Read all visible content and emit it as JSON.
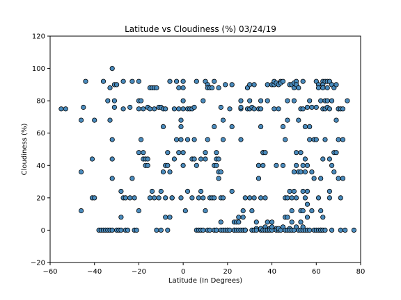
{
  "chart_data": {
    "type": "scatter",
    "title": "Latitude vs Cloudiness (%) 03/24/19",
    "xlabel": "Latitude (In Degrees)",
    "ylabel": "Cloudiness (%)",
    "xlim": [
      -60,
      80
    ],
    "ylim": [
      -20,
      120
    ],
    "xticks": [
      -60,
      -40,
      -20,
      0,
      20,
      40,
      60,
      80
    ],
    "yticks": [
      -20,
      0,
      20,
      40,
      60,
      80,
      100,
      120
    ],
    "grid": false,
    "marker_color": "#4a8bbd",
    "edge_color": "#000000",
    "points": [
      [
        -55,
        75
      ],
      [
        -53,
        75
      ],
      [
        -46,
        12
      ],
      [
        -46,
        36
      ],
      [
        -46,
        68
      ],
      [
        -45,
        76
      ],
      [
        -44,
        92
      ],
      [
        -41,
        20
      ],
      [
        -41,
        44
      ],
      [
        -40,
        68
      ],
      [
        -40,
        20
      ],
      [
        -38,
        0
      ],
      [
        -37,
        0
      ],
      [
        -36,
        0
      ],
      [
        -36,
        92
      ],
      [
        -35,
        0
      ],
      [
        -34,
        80
      ],
      [
        -34,
        0
      ],
      [
        -33,
        88
      ],
      [
        -33,
        68
      ],
      [
        -33,
        0
      ],
      [
        -32,
        100
      ],
      [
        -32,
        56
      ],
      [
        -32,
        44
      ],
      [
        -32,
        32
      ],
      [
        -32,
        0
      ],
      [
        -31,
        90
      ],
      [
        -31,
        80
      ],
      [
        -31,
        76
      ],
      [
        -30,
        90
      ],
      [
        -30,
        0
      ],
      [
        -29,
        0
      ],
      [
        -28,
        8
      ],
      [
        -28,
        24
      ],
      [
        -28,
        0
      ],
      [
        -27,
        75
      ],
      [
        -27,
        20
      ],
      [
        -27,
        92
      ],
      [
        -26,
        20
      ],
      [
        -26,
        0
      ],
      [
        -25,
        0
      ],
      [
        -24,
        76
      ],
      [
        -24,
        20
      ],
      [
        -23,
        92
      ],
      [
        -23,
        32
      ],
      [
        -22,
        20
      ],
      [
        -22,
        0
      ],
      [
        -21,
        0
      ],
      [
        -20,
        12
      ],
      [
        -20,
        48
      ],
      [
        -20,
        80
      ],
      [
        -20,
        75
      ],
      [
        -20,
        92
      ],
      [
        -19,
        56
      ],
      [
        -19,
        80
      ],
      [
        -18,
        75
      ],
      [
        -18,
        44
      ],
      [
        -18,
        48
      ],
      [
        -17,
        40
      ],
      [
        -17,
        44
      ],
      [
        -16,
        44
      ],
      [
        -16,
        40
      ],
      [
        -16,
        76
      ],
      [
        -15,
        75
      ],
      [
        -15,
        20
      ],
      [
        -15,
        88
      ],
      [
        -14,
        88
      ],
      [
        -14,
        24
      ],
      [
        -13,
        20
      ],
      [
        -13,
        75
      ],
      [
        -13,
        88
      ],
      [
        -12,
        0
      ],
      [
        -12,
        88
      ],
      [
        -11,
        20
      ],
      [
        -11,
        76
      ],
      [
        -10,
        76
      ],
      [
        -10,
        24
      ],
      [
        -10,
        0
      ],
      [
        -9,
        64
      ],
      [
        -9,
        36
      ],
      [
        -9,
        75
      ],
      [
        -8,
        40
      ],
      [
        -8,
        75
      ],
      [
        -8,
        20
      ],
      [
        -8,
        8
      ],
      [
        -7,
        40
      ],
      [
        -7,
        48
      ],
      [
        -7,
        0
      ],
      [
        -6,
        92
      ],
      [
        -6,
        36
      ],
      [
        -6,
        8
      ],
      [
        -5,
        20
      ],
      [
        -5,
        20
      ],
      [
        -4,
        75
      ],
      [
        -4,
        44
      ],
      [
        -3,
        56
      ],
      [
        -3,
        92
      ],
      [
        -2,
        48
      ],
      [
        -2,
        88
      ],
      [
        -2,
        75
      ],
      [
        -1,
        68
      ],
      [
        -1,
        64
      ],
      [
        -1,
        56
      ],
      [
        -1,
        20
      ],
      [
        0,
        92
      ],
      [
        0,
        88
      ],
      [
        0,
        80
      ],
      [
        0,
        75
      ],
      [
        0,
        48
      ],
      [
        0,
        40
      ],
      [
        1,
        12
      ],
      [
        2,
        56
      ],
      [
        2,
        75
      ],
      [
        2,
        24
      ],
      [
        3,
        75
      ],
      [
        4,
        20
      ],
      [
        4,
        44
      ],
      [
        4,
        75
      ],
      [
        5,
        44
      ],
      [
        5,
        56
      ],
      [
        5,
        76
      ],
      [
        6,
        92
      ],
      [
        6,
        40
      ],
      [
        6,
        0
      ],
      [
        7,
        0
      ],
      [
        7,
        20
      ],
      [
        8,
        24
      ],
      [
        8,
        44
      ],
      [
        8,
        0
      ],
      [
        9,
        80
      ],
      [
        9,
        20
      ],
      [
        9,
        0
      ],
      [
        10,
        44
      ],
      [
        10,
        48
      ],
      [
        10,
        12
      ],
      [
        10,
        92
      ],
      [
        11,
        56
      ],
      [
        11,
        90
      ],
      [
        11,
        88
      ],
      [
        11,
        0
      ],
      [
        12,
        20
      ],
      [
        12,
        88
      ],
      [
        12,
        0
      ],
      [
        13,
        20
      ],
      [
        13,
        88
      ],
      [
        14,
        20
      ],
      [
        14,
        64
      ],
      [
        14,
        92
      ],
      [
        14,
        40
      ],
      [
        14,
        0
      ],
      [
        15,
        48
      ],
      [
        15,
        44
      ],
      [
        15,
        0
      ],
      [
        15,
        40
      ],
      [
        15,
        0
      ],
      [
        16,
        44
      ],
      [
        16,
        32
      ],
      [
        16,
        88
      ],
      [
        16,
        36
      ],
      [
        17,
        20
      ],
      [
        17,
        36
      ],
      [
        17,
        5
      ],
      [
        17,
        76
      ],
      [
        17,
        0
      ],
      [
        18,
        0
      ],
      [
        18,
        56
      ],
      [
        18,
        68
      ],
      [
        18,
        20
      ],
      [
        19,
        90
      ],
      [
        19,
        0
      ],
      [
        20,
        0
      ],
      [
        20,
        0
      ],
      [
        21,
        0
      ],
      [
        21,
        75
      ],
      [
        22,
        90
      ],
      [
        22,
        64
      ],
      [
        22,
        24
      ],
      [
        23,
        5
      ],
      [
        23,
        0
      ],
      [
        23,
        0
      ],
      [
        24,
        0
      ],
      [
        24,
        5
      ],
      [
        25,
        0
      ],
      [
        25,
        8
      ],
      [
        25,
        5
      ],
      [
        26,
        56
      ],
      [
        26,
        75
      ],
      [
        26,
        76
      ],
      [
        26,
        80
      ],
      [
        26,
        0
      ],
      [
        27,
        12
      ],
      [
        27,
        0
      ],
      [
        27,
        8
      ],
      [
        28,
        20
      ],
      [
        28,
        0
      ],
      [
        28,
        0
      ],
      [
        29,
        88
      ],
      [
        29,
        75
      ],
      [
        29,
        88
      ],
      [
        30,
        90
      ],
      [
        30,
        75
      ],
      [
        30,
        20
      ],
      [
        30,
        80
      ],
      [
        31,
        0
      ],
      [
        31,
        12
      ],
      [
        31,
        76
      ],
      [
        32,
        75
      ],
      [
        32,
        90
      ],
      [
        32,
        0
      ],
      [
        32,
        20
      ],
      [
        33,
        1
      ],
      [
        33,
        5
      ],
      [
        33,
        0
      ],
      [
        34,
        75
      ],
      [
        34,
        40
      ],
      [
        34,
        32
      ],
      [
        34,
        40
      ],
      [
        35,
        80
      ],
      [
        35,
        75
      ],
      [
        35,
        64
      ],
      [
        35,
        20
      ],
      [
        35,
        0
      ],
      [
        35,
        1
      ],
      [
        36,
        48
      ],
      [
        36,
        40
      ],
      [
        36,
        48
      ],
      [
        36,
        0
      ],
      [
        37,
        48
      ],
      [
        37,
        20
      ],
      [
        37,
        2
      ],
      [
        37,
        0
      ],
      [
        38,
        90
      ],
      [
        38,
        80
      ],
      [
        38,
        5
      ],
      [
        38,
        0
      ],
      [
        38,
        0
      ],
      [
        39,
        1
      ],
      [
        39,
        0
      ],
      [
        40,
        90
      ],
      [
        40,
        0
      ],
      [
        40,
        5
      ],
      [
        40,
        2
      ],
      [
        41,
        90
      ],
      [
        41,
        92
      ],
      [
        41,
        75
      ],
      [
        42,
        40
      ],
      [
        42,
        91
      ],
      [
        42,
        1
      ],
      [
        42,
        0
      ],
      [
        43,
        75
      ],
      [
        43,
        90
      ],
      [
        43,
        0
      ],
      [
        43,
        1
      ],
      [
        44,
        92
      ],
      [
        44,
        91
      ],
      [
        44,
        0
      ],
      [
        45,
        64
      ],
      [
        45,
        92
      ],
      [
        45,
        40
      ],
      [
        45,
        2
      ],
      [
        46,
        56
      ],
      [
        46,
        20
      ],
      [
        46,
        8
      ],
      [
        46,
        0
      ],
      [
        47,
        68
      ],
      [
        47,
        80
      ],
      [
        47,
        20
      ],
      [
        47,
        0
      ],
      [
        47,
        8
      ],
      [
        48,
        90
      ],
      [
        48,
        24
      ],
      [
        48,
        1
      ],
      [
        48,
        0
      ],
      [
        49,
        90
      ],
      [
        49,
        20
      ],
      [
        49,
        0
      ],
      [
        49,
        5
      ],
      [
        49,
        12
      ],
      [
        50,
        91
      ],
      [
        50,
        88
      ],
      [
        50,
        80
      ],
      [
        50,
        36
      ],
      [
        50,
        24
      ],
      [
        50,
        0
      ],
      [
        51,
        92
      ],
      [
        51,
        48
      ],
      [
        51,
        40
      ],
      [
        51,
        20
      ],
      [
        51,
        2
      ],
      [
        51,
        90
      ],
      [
        52,
        88
      ],
      [
        52,
        68
      ],
      [
        52,
        36
      ],
      [
        52,
        0
      ],
      [
        53,
        75
      ],
      [
        53,
        48
      ],
      [
        53,
        36
      ],
      [
        53,
        12
      ],
      [
        53,
        0
      ],
      [
        53,
        5
      ],
      [
        54,
        92
      ],
      [
        54,
        75
      ],
      [
        54,
        40
      ],
      [
        54,
        24
      ],
      [
        54,
        12
      ],
      [
        54,
        0
      ],
      [
        54,
        2
      ],
      [
        55,
        64
      ],
      [
        55,
        44
      ],
      [
        55,
        36
      ],
      [
        55,
        20
      ],
      [
        55,
        0
      ],
      [
        56,
        76
      ],
      [
        56,
        40
      ],
      [
        56,
        24
      ],
      [
        56,
        16
      ],
      [
        56,
        0
      ],
      [
        56,
        8
      ],
      [
        57,
        80
      ],
      [
        57,
        64
      ],
      [
        57,
        56
      ],
      [
        57,
        0
      ],
      [
        58,
        36
      ],
      [
        58,
        76
      ],
      [
        58,
        12
      ],
      [
        59,
        56
      ],
      [
        59,
        32
      ],
      [
        59,
        0
      ],
      [
        60,
        92
      ],
      [
        60,
        76
      ],
      [
        60,
        56
      ],
      [
        60,
        0
      ],
      [
        61,
        90
      ],
      [
        61,
        88
      ],
      [
        61,
        0
      ],
      [
        61,
        20
      ],
      [
        62,
        80
      ],
      [
        62,
        32
      ],
      [
        62,
        12
      ],
      [
        62,
        0
      ],
      [
        62,
        0
      ],
      [
        63,
        92
      ],
      [
        63,
        90
      ],
      [
        63,
        88
      ],
      [
        63,
        75
      ],
      [
        63,
        44
      ],
      [
        63,
        8
      ],
      [
        63,
        0
      ],
      [
        64,
        75
      ],
      [
        64,
        80
      ],
      [
        64,
        92
      ],
      [
        64,
        56
      ],
      [
        64,
        0
      ],
      [
        65,
        92
      ],
      [
        65,
        88
      ],
      [
        65,
        80
      ],
      [
        65,
        76
      ],
      [
        66,
        92
      ],
      [
        66,
        75
      ],
      [
        66,
        44
      ],
      [
        66,
        24
      ],
      [
        66,
        20
      ],
      [
        67,
        80
      ],
      [
        67,
        90
      ],
      [
        67,
        40
      ],
      [
        67,
        0
      ],
      [
        68,
        48
      ],
      [
        68,
        36
      ],
      [
        68,
        88
      ],
      [
        69,
        48
      ],
      [
        69,
        68
      ],
      [
        69,
        90
      ],
      [
        70,
        75
      ],
      [
        70,
        56
      ],
      [
        70,
        32
      ],
      [
        70,
        75
      ],
      [
        71,
        20
      ],
      [
        71,
        75
      ],
      [
        71,
        0
      ],
      [
        72,
        32
      ],
      [
        72,
        56
      ],
      [
        72,
        75
      ],
      [
        73,
        0
      ],
      [
        74,
        80
      ],
      [
        77,
        0
      ]
    ]
  }
}
